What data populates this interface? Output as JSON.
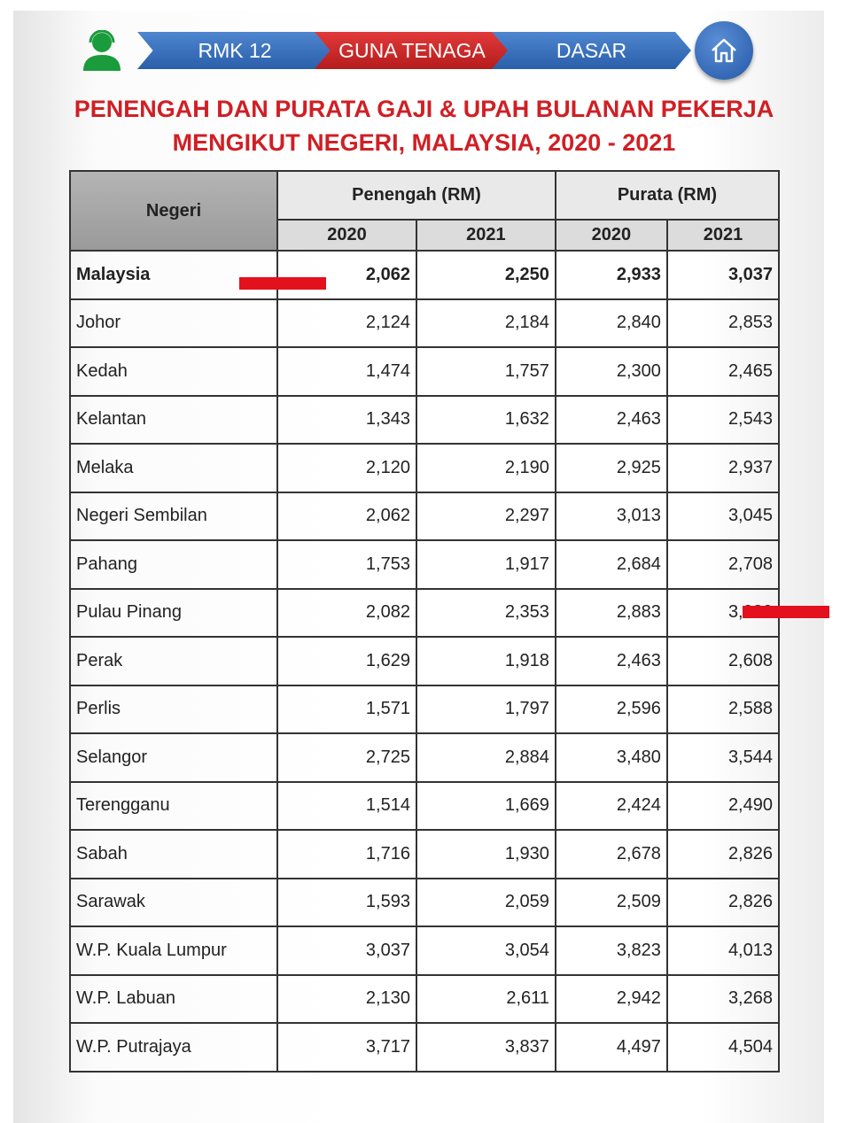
{
  "nav": {
    "items": [
      "RMK 12",
      "GUNA TENAGA",
      "DASAR"
    ],
    "active": "GUNA TENAGA",
    "home_icon": "home-icon",
    "user_icon": "support-agent-icon",
    "colors": {
      "blue": "#3a70bd",
      "red": "#c8262a",
      "title": "#d01f24",
      "user_icon": "#1a9b3c"
    }
  },
  "title": {
    "line1": "PENENGAH DAN PURATA GAJI & UPAH BULANAN PEKERJA",
    "line2": "MENGIKUT NEGERI, MALAYSIA, 2020 - 2021"
  },
  "table": {
    "header": {
      "negeri": "Negeri",
      "penengah": "Penengah (RM)",
      "purata": "Purata (RM)",
      "years": [
        "2020",
        "2021",
        "2020",
        "2021"
      ]
    },
    "rows": [
      {
        "negeri": "Malaysia",
        "values": [
          "2,062",
          "2,250",
          "2,933",
          "3,037"
        ]
      },
      {
        "negeri": "Johor",
        "values": [
          "2,124",
          "2,184",
          "2,840",
          "2,853"
        ]
      },
      {
        "negeri": "Kedah",
        "values": [
          "1,474",
          "1,757",
          "2,300",
          "2,465"
        ]
      },
      {
        "negeri": "Kelantan",
        "values": [
          "1,343",
          "1,632",
          "2,463",
          "2,543"
        ]
      },
      {
        "negeri": "Melaka",
        "values": [
          "2,120",
          "2,190",
          "2,925",
          "2,937"
        ]
      },
      {
        "negeri": "Negeri Sembilan",
        "values": [
          "2,062",
          "2,297",
          "3,013",
          "3,045"
        ]
      },
      {
        "negeri": "Pahang",
        "values": [
          "1,753",
          "1,917",
          "2,684",
          "2,708"
        ]
      },
      {
        "negeri": "Pulau Pinang",
        "values": [
          "2,082",
          "2,353",
          "2,883",
          "3,080"
        ]
      },
      {
        "negeri": "Perak",
        "values": [
          "1,629",
          "1,918",
          "2,463",
          "2,608"
        ]
      },
      {
        "negeri": "Perlis",
        "values": [
          "1,571",
          "1,797",
          "2,596",
          "2,588"
        ]
      },
      {
        "negeri": "Selangor",
        "values": [
          "2,725",
          "2,884",
          "3,480",
          "3,544"
        ]
      },
      {
        "negeri": "Terengganu",
        "values": [
          "1,514",
          "1,669",
          "2,424",
          "2,490"
        ]
      },
      {
        "negeri": "Sabah",
        "values": [
          "1,716",
          "1,930",
          "2,678",
          "2,826"
        ]
      },
      {
        "negeri": "Sarawak",
        "values": [
          "1,593",
          "2,059",
          "2,509",
          "2,826"
        ]
      },
      {
        "negeri": "W.P. Kuala Lumpur",
        "values": [
          "3,037",
          "3,054",
          "3,823",
          "4,013"
        ]
      },
      {
        "negeri": "W.P. Labuan",
        "values": [
          "2,130",
          "2,611",
          "2,942",
          "3,268"
        ]
      },
      {
        "negeri": "W.P. Putrajaya",
        "values": [
          "3,717",
          "3,837",
          "4,497",
          "4,504"
        ]
      }
    ]
  },
  "annotations": {
    "highlight_marks": [
      "Malaysia Penengah 2020",
      "Pulau Pinang Purata 2021"
    ],
    "color": "#e3101d"
  }
}
